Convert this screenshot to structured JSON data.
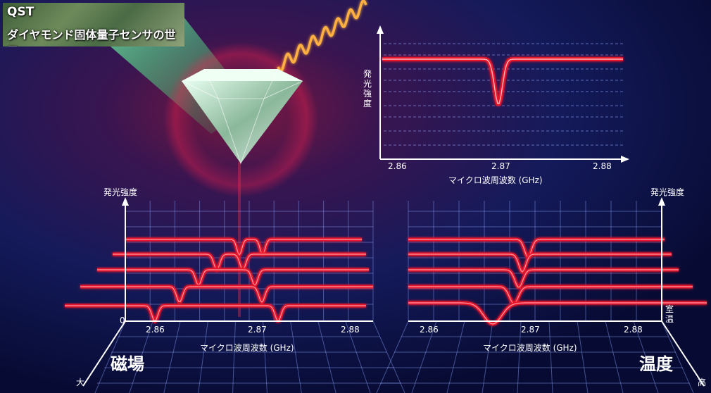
{
  "badge": {
    "line1": "QST",
    "line2": "ダイヤモンド固体量子センサの世界"
  },
  "top_chart": {
    "ylabel": "発光強度",
    "ticks": [
      "2.86",
      "2.87",
      "2.88"
    ],
    "xlabel": "マイクロ波周波数 (GHz)"
  },
  "left_chart": {
    "ylabel": "発光強度",
    "zero": "0",
    "ticks": [
      "2.86",
      "2.87",
      "2.88"
    ],
    "xlabel": "マイクロ波周波数 (GHz)",
    "depth_label": "磁場",
    "depth_end": "大"
  },
  "right_chart": {
    "ylabel": "発光強度",
    "ticks": [
      "2.86",
      "2.87",
      "2.88"
    ],
    "xlabel": "マイクロ波周波数 (GHz)",
    "depth_label": "温度",
    "depth_end": "高",
    "depth_start": "室温"
  },
  "colors": {
    "curve": "#e8132a",
    "background": "#0a0f3a",
    "laser": "#3cff7a",
    "microwave": "#ffb040"
  }
}
